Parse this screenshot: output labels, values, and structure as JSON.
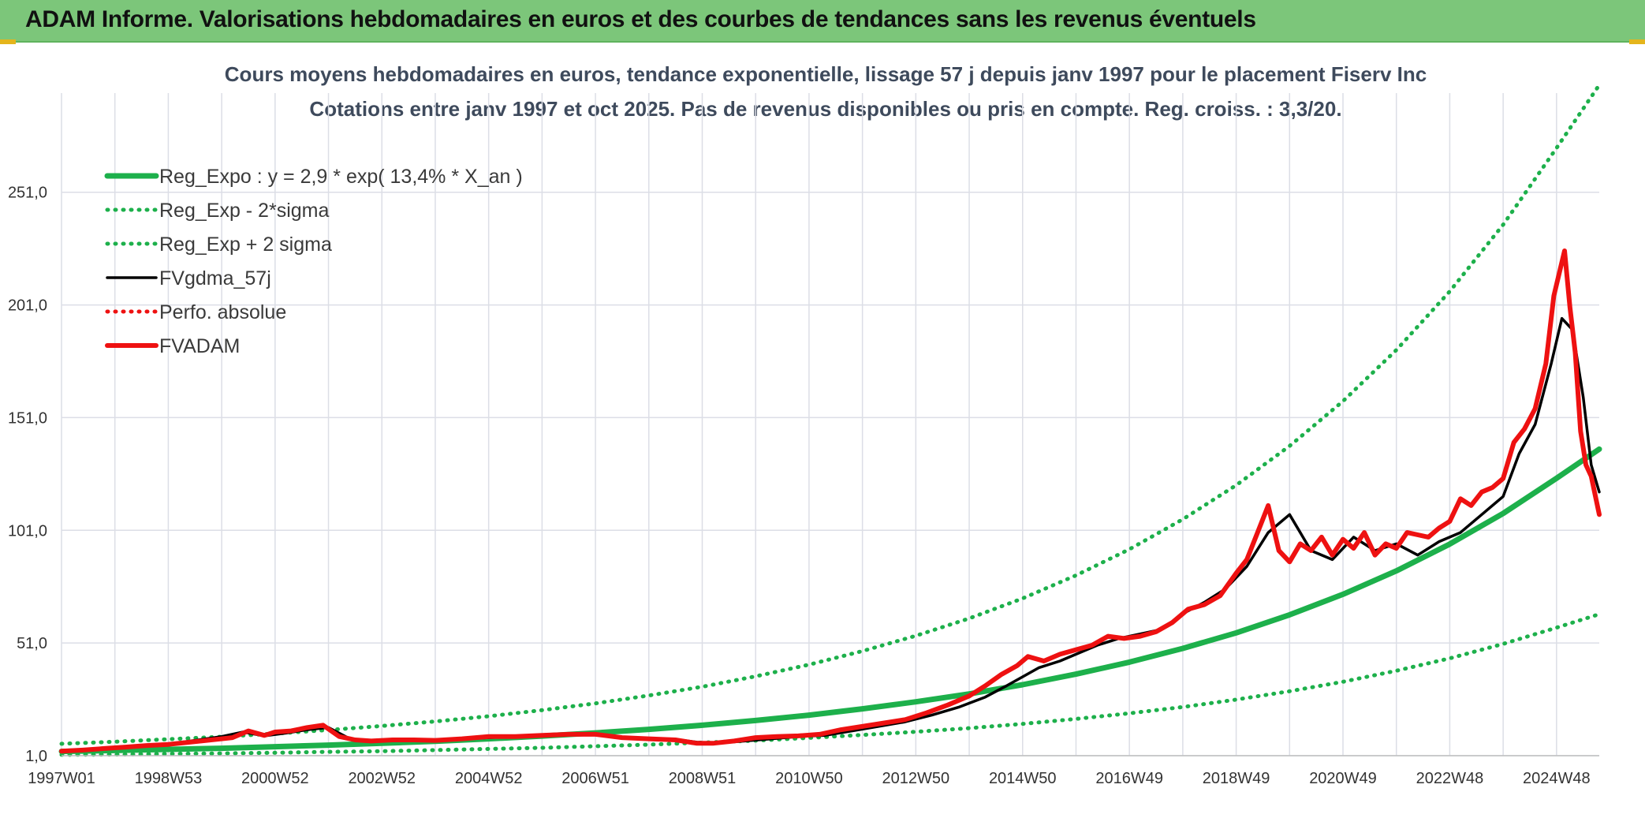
{
  "header": {
    "title": "ADAM Informe. Valorisations hebdomadaires en euros et des courbes de tendances sans les revenus éventuels"
  },
  "colors": {
    "header_bg": "#7cc67a",
    "trend": "#1db04b",
    "fv57": "#000000",
    "fvadam": "#ee1111",
    "perfo": "#ee1111",
    "grid": "#dcdee6"
  },
  "chart_data": {
    "type": "line",
    "title": "Cours moyens hebdomadaires en euros, tendance exponentielle, lissage 57 j depuis janv 1997 pour le placement Fiserv Inc",
    "subtitle": "Cotations entre janv 1997 et oct 2025. Pas de revenus disponibles ou pris en compte. Reg. croiss. : 3,3/20.",
    "xlabel": "",
    "ylabel": "",
    "x_range": [
      1997.0,
      2025.8
    ],
    "ylim": [
      1,
      295
    ],
    "grid": true,
    "legend_position": "top-left",
    "x_ticks": [
      {
        "label": "1997W01",
        "x": 1997.0
      },
      {
        "label": "1998W53",
        "x": 1999.0
      },
      {
        "label": "2000W52",
        "x": 2001.0
      },
      {
        "label": "2002W52",
        "x": 2003.0
      },
      {
        "label": "2004W52",
        "x": 2005.0
      },
      {
        "label": "2006W51",
        "x": 2007.0
      },
      {
        "label": "2008W51",
        "x": 2009.0
      },
      {
        "label": "2010W50",
        "x": 2011.0
      },
      {
        "label": "2012W50",
        "x": 2013.0
      },
      {
        "label": "2014W50",
        "x": 2015.0
      },
      {
        "label": "2016W49",
        "x": 2017.0
      },
      {
        "label": "2018W49",
        "x": 2019.0
      },
      {
        "label": "2020W49",
        "x": 2021.0
      },
      {
        "label": "2022W48",
        "x": 2023.0
      },
      {
        "label": "2024W48",
        "x": 2025.0
      }
    ],
    "y_ticks": [
      {
        "label": "1,0",
        "value": 1.0
      },
      {
        "label": "51,0",
        "value": 51.0
      },
      {
        "label": "101,0",
        "value": 101.0
      },
      {
        "label": "151,0",
        "value": 151.0
      },
      {
        "label": "201,0",
        "value": 201.0
      },
      {
        "label": "251,0",
        "value": 251.0
      }
    ],
    "regression": {
      "a": 2.9,
      "b": 0.134,
      "x0": 1997.0,
      "sigma_factor_low": 0.466,
      "sigma_factor_high": 2.18
    },
    "series": [
      {
        "key": "reg",
        "name": "Reg_Expo : y = 2,9 * exp( 13,4% *  X_an )",
        "style": "solid-thick",
        "color": "#1db04b",
        "x": [
          1997,
          1998,
          1999,
          2000,
          2001,
          2002,
          2003,
          2004,
          2005,
          2006,
          2007,
          2008,
          2009,
          2010,
          2011,
          2012,
          2013,
          2014,
          2015,
          2016,
          2017,
          2018,
          2019,
          2020,
          2021,
          2022,
          2023,
          2024,
          2025,
          2025.8
        ],
        "values": [
          2.9,
          3.3,
          3.8,
          4.3,
          5.0,
          5.7,
          6.5,
          7.4,
          8.5,
          9.7,
          11.1,
          12.7,
          14.5,
          16.6,
          19.0,
          21.8,
          24.9,
          28.4,
          32.5,
          37.2,
          42.5,
          48.6,
          55.5,
          63.5,
          72.6,
          83.0,
          94.9,
          108.5,
          124.1,
          137.0
        ]
      },
      {
        "key": "low",
        "name": "Reg_Exp - 2*sigma",
        "style": "dotted",
        "color": "#1db04b",
        "x": [
          1997,
          1998,
          1999,
          2000,
          2001,
          2002,
          2003,
          2004,
          2005,
          2006,
          2007,
          2008,
          2009,
          2010,
          2011,
          2012,
          2013,
          2014,
          2015,
          2016,
          2017,
          2018,
          2019,
          2020,
          2021,
          2022,
          2023,
          2024,
          2025,
          2025.8
        ],
        "values": [
          1.4,
          1.5,
          1.8,
          2.0,
          2.3,
          2.7,
          3.0,
          3.5,
          4.0,
          4.5,
          5.2,
          5.9,
          6.8,
          7.7,
          8.9,
          10.2,
          11.6,
          13.2,
          15.1,
          17.3,
          19.8,
          22.6,
          25.9,
          29.6,
          33.8,
          38.7,
          44.2,
          50.6,
          57.8,
          63.8
        ]
      },
      {
        "key": "high",
        "name": "Reg_Exp + 2 sigma",
        "style": "dotted",
        "color": "#1db04b",
        "x": [
          1997,
          1998,
          1999,
          2000,
          2001,
          2002,
          2003,
          2004,
          2005,
          2006,
          2007,
          2008,
          2009,
          2010,
          2011,
          2012,
          2013,
          2014,
          2015,
          2016,
          2017,
          2018,
          2019,
          2020,
          2021,
          2022,
          2023,
          2024,
          2025,
          2025.8
        ],
        "values": [
          6.3,
          7.2,
          8.3,
          9.4,
          10.8,
          12.4,
          14.2,
          16.2,
          18.5,
          21.2,
          24.2,
          27.7,
          31.6,
          36.2,
          41.4,
          47.4,
          54.2,
          61.9,
          70.8,
          81.0,
          92.6,
          105.9,
          121.0,
          138.4,
          158.3,
          181.0,
          207.0,
          236.6,
          270.6,
          298.6
        ]
      },
      {
        "key": "fv57",
        "name": "FVgdma_57j",
        "style": "solid",
        "color": "#000000",
        "x": [
          1997.0,
          1997.5,
          1998.0,
          1998.5,
          1999.0,
          1999.5,
          2000.0,
          2000.4,
          2000.8,
          2001.2,
          2001.6,
          2002.0,
          2002.4,
          2002.8,
          2003.2,
          2003.6,
          2004.0,
          2004.5,
          2005.0,
          2005.5,
          2006.0,
          2006.5,
          2007.0,
          2007.5,
          2008.0,
          2008.5,
          2008.9,
          2009.3,
          2009.8,
          2010.3,
          2010.8,
          2011.3,
          2011.8,
          2012.3,
          2012.8,
          2013.3,
          2013.8,
          2014.3,
          2014.7,
          2015.0,
          2015.3,
          2015.7,
          2016.0,
          2016.4,
          2016.8,
          2017.2,
          2017.6,
          2018.0,
          2018.4,
          2018.8,
          2019.2,
          2019.6,
          2020.0,
          2020.4,
          2020.8,
          2021.2,
          2021.6,
          2022.0,
          2022.4,
          2022.8,
          2023.2,
          2023.6,
          2024.0,
          2024.3,
          2024.6,
          2024.9,
          2025.1,
          2025.3,
          2025.5,
          2025.65,
          2025.8
        ],
        "values": [
          3.0,
          3.8,
          4.5,
          5.4,
          6.2,
          7.8,
          9.5,
          11.5,
          9.8,
          11.0,
          12.5,
          13.5,
          8.5,
          7.5,
          7.8,
          8.2,
          8.0,
          8.4,
          9.0,
          9.5,
          10.0,
          10.3,
          10.5,
          9.0,
          8.5,
          8.2,
          7.0,
          6.6,
          7.5,
          8.5,
          9.5,
          10.0,
          12.0,
          14.0,
          16.0,
          19.0,
          22.5,
          27.0,
          32.0,
          36.0,
          40.0,
          43.0,
          46.0,
          50.0,
          53.0,
          55.0,
          57.0,
          64.0,
          69.0,
          75.0,
          85.0,
          100.0,
          108.0,
          92.0,
          88.0,
          98.0,
          92.0,
          95.0,
          90.0,
          96.0,
          100.0,
          108.0,
          116.0,
          135.0,
          148.0,
          175.0,
          195.0,
          190.0,
          160.0,
          130.0,
          118.0
        ]
      },
      {
        "key": "fvadam",
        "name": "FVADAM",
        "style": "solid-thick",
        "color": "#ee1111",
        "x": [
          1997.0,
          1997.4,
          1997.8,
          1998.2,
          1998.6,
          1999.0,
          1999.4,
          1999.8,
          2000.2,
          2000.5,
          2000.8,
          2001.0,
          2001.3,
          2001.6,
          2001.9,
          2002.2,
          2002.5,
          2002.8,
          2003.2,
          2003.6,
          2004.0,
          2004.5,
          2005.0,
          2005.5,
          2006.0,
          2006.5,
          2007.0,
          2007.5,
          2008.0,
          2008.5,
          2008.9,
          2009.2,
          2009.6,
          2010.0,
          2010.4,
          2010.8,
          2011.2,
          2011.6,
          2012.0,
          2012.4,
          2012.8,
          2013.2,
          2013.6,
          2014.0,
          2014.3,
          2014.6,
          2014.9,
          2015.1,
          2015.4,
          2015.7,
          2016.0,
          2016.3,
          2016.6,
          2016.9,
          2017.2,
          2017.5,
          2017.8,
          2018.1,
          2018.4,
          2018.7,
          2019.0,
          2019.2,
          2019.4,
          2019.6,
          2019.8,
          2020.0,
          2020.2,
          2020.4,
          2020.6,
          2020.8,
          2021.0,
          2021.2,
          2021.4,
          2021.6,
          2021.8,
          2022.0,
          2022.2,
          2022.4,
          2022.6,
          2022.8,
          2023.0,
          2023.2,
          2023.4,
          2023.6,
          2023.8,
          2024.0,
          2024.2,
          2024.4,
          2024.6,
          2024.8,
          2024.95,
          2025.05,
          2025.15,
          2025.25,
          2025.35,
          2025.45,
          2025.55,
          2025.65,
          2025.8
        ],
        "values": [
          3.0,
          3.5,
          4.2,
          4.8,
          5.5,
          6.0,
          7.0,
          8.0,
          9.0,
          12.0,
          10.0,
          11.5,
          12.0,
          13.5,
          14.5,
          9.5,
          8.0,
          7.5,
          8.0,
          8.0,
          7.8,
          8.5,
          9.5,
          9.5,
          10.0,
          10.5,
          10.5,
          9.0,
          8.5,
          8.0,
          6.5,
          6.5,
          7.5,
          9.0,
          9.5,
          9.8,
          10.5,
          12.5,
          14.0,
          15.5,
          17.0,
          20.0,
          23.5,
          27.5,
          32.0,
          37.0,
          41.0,
          45.0,
          43.0,
          46.0,
          48.0,
          50.0,
          54.0,
          53.0,
          54.0,
          56.0,
          60.0,
          66.0,
          68.0,
          72.0,
          82.0,
          88.0,
          100.0,
          112.0,
          92.0,
          87.0,
          95.0,
          92.0,
          98.0,
          90.0,
          97.0,
          93.0,
          100.0,
          90.0,
          95.0,
          93.0,
          100.0,
          99.0,
          98.0,
          102.0,
          105.0,
          115.0,
          112.0,
          118.0,
          120.0,
          124.0,
          140.0,
          146.0,
          155.0,
          175.0,
          205.0,
          215.0,
          225.0,
          200.0,
          180.0,
          145.0,
          130.0,
          125.0,
          108.0
        ]
      },
      {
        "key": "perfo",
        "name": "Perfo. absolue",
        "style": "dotted",
        "color": "#ee1111",
        "x": [],
        "values": []
      }
    ]
  }
}
